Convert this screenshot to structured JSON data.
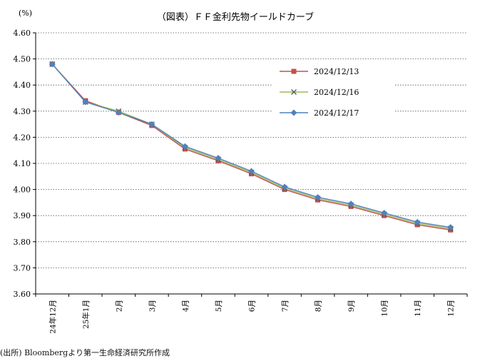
{
  "chart_data": {
    "type": "line",
    "title": "（図表）ＦＦ金利先物イールドカーブ",
    "ylabel": "(%)",
    "xlabel": "",
    "categories": [
      "24年12月",
      "25年1月",
      "2月",
      "3月",
      "4月",
      "5月",
      "6月",
      "7月",
      "8月",
      "9月",
      "10月",
      "11月",
      "12月"
    ],
    "ylim": [
      3.6,
      4.6
    ],
    "yticks": [
      "3.60",
      "3.70",
      "3.80",
      "3.90",
      "4.00",
      "4.10",
      "4.20",
      "4.30",
      "4.40",
      "4.50",
      "4.60"
    ],
    "grid": "horizontal-dotted",
    "legend_position": "right",
    "series": [
      {
        "name": "2024/12/13",
        "color": "#c0504d",
        "marker": "square",
        "values": [
          4.48,
          4.34,
          4.295,
          4.245,
          4.155,
          4.11,
          4.06,
          4.0,
          3.96,
          3.935,
          3.9,
          3.865,
          3.845
        ]
      },
      {
        "name": "2024/12/16",
        "color": "#9bbb59",
        "marker": "x",
        "values": [
          4.48,
          4.335,
          4.3,
          4.25,
          4.16,
          4.115,
          4.065,
          4.005,
          3.965,
          3.94,
          3.905,
          3.87,
          3.85
        ]
      },
      {
        "name": "2024/12/17",
        "color": "#4f81bd",
        "marker": "diamond",
        "values": [
          4.48,
          4.335,
          4.295,
          4.25,
          4.165,
          4.12,
          4.07,
          4.01,
          3.97,
          3.945,
          3.91,
          3.875,
          3.855
        ]
      }
    ]
  },
  "source_note": "(出所) Bloombergより第一生命経済研究所作成"
}
